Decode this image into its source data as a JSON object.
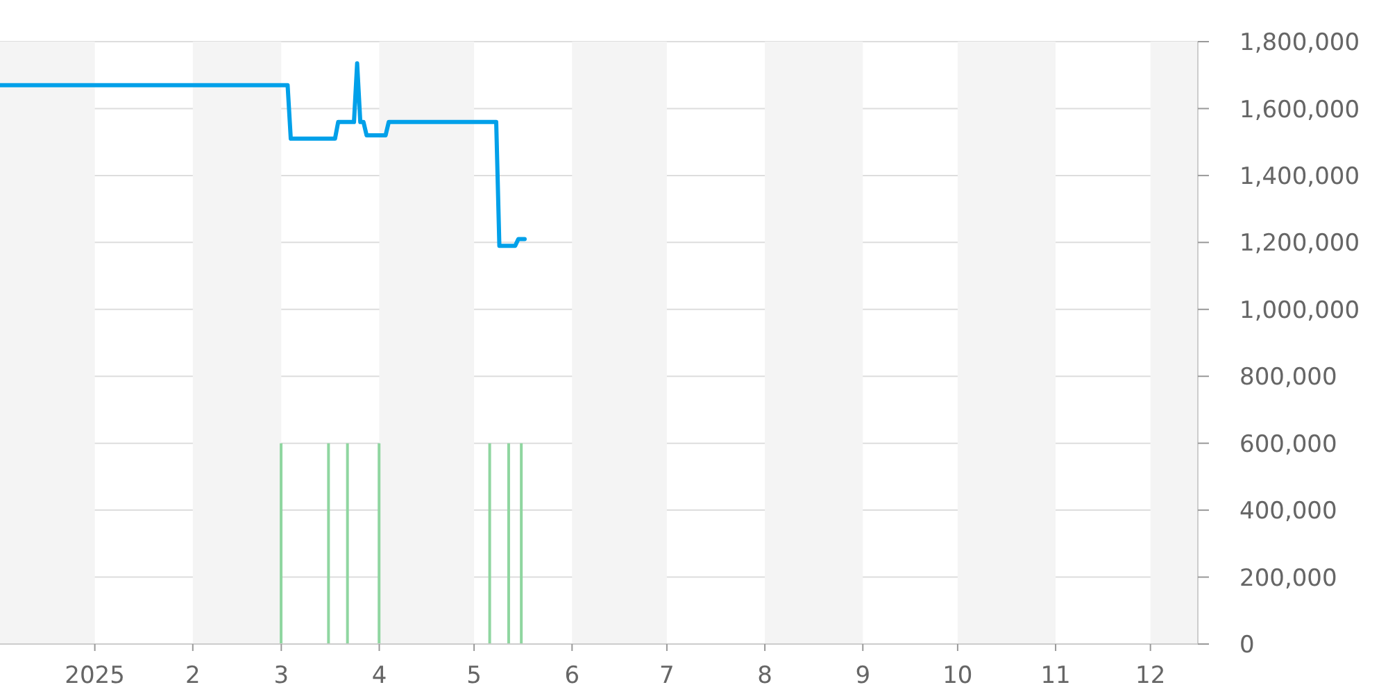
{
  "chart_data": {
    "type": "line",
    "series": [
      {
        "color": "#00a0e9",
        "x": [
          "2024-12-02",
          "2025-03-03",
          "2025-03-04",
          "2025-03-18",
          "2025-03-19",
          "2025-03-24",
          "2025-03-25",
          "2025-03-26",
          "2025-03-27",
          "2025-03-28",
          "2025-04-03",
          "2025-04-04",
          "2025-05-08",
          "2025-05-09",
          "2025-05-14",
          "2025-05-15",
          "2025-05-17"
        ],
        "values": [
          1670000,
          1670000,
          1510000,
          1510000,
          1560000,
          1560000,
          1735000,
          1560000,
          1560000,
          1520000,
          1520000,
          1560000,
          1560000,
          1190000,
          1190000,
          1210000,
          1210000
        ]
      },
      {
        "type": "bar",
        "color": "#8fd6a0",
        "x": [
          "2025-03-01",
          "2025-03-16",
          "2025-03-22",
          "2025-04-01",
          "2025-05-06",
          "2025-05-12",
          "2025-05-16"
        ],
        "values": [
          600000,
          600000,
          600000,
          600000,
          600000,
          600000,
          600000
        ]
      }
    ],
    "xlim": [
      "2024-12-02",
      "2025-12-16"
    ],
    "xticks": [
      {
        "value": "2025-01-01",
        "label": "2025"
      },
      {
        "value": "2025-02-01",
        "label": "2"
      },
      {
        "value": "2025-03-01",
        "label": "3"
      },
      {
        "value": "2025-04-01",
        "label": "4"
      },
      {
        "value": "2025-05-01",
        "label": "5"
      },
      {
        "value": "2025-06-01",
        "label": "6"
      },
      {
        "value": "2025-07-01",
        "label": "7"
      },
      {
        "value": "2025-08-01",
        "label": "8"
      },
      {
        "value": "2025-09-01",
        "label": "9"
      },
      {
        "value": "2025-10-01",
        "label": "10"
      },
      {
        "value": "2025-11-01",
        "label": "11"
      },
      {
        "value": "2025-12-01",
        "label": "12"
      }
    ],
    "ylim": [
      0,
      1800000
    ],
    "yticks": [
      0,
      {
        "value": 200000,
        "label": "200,000"
      },
      {
        "value": 400000,
        "label": "400,000"
      },
      {
        "value": 600000,
        "label": "600,000"
      },
      {
        "value": 800000,
        "label": "800,000"
      },
      {
        "value": 1000000,
        "label": "1,000,000"
      },
      {
        "value": 1200000,
        "label": "1,200,000"
      },
      {
        "value": 1400000,
        "label": "1,400,000"
      },
      {
        "value": 1600000,
        "label": "1,600,000"
      },
      {
        "value": 1800000,
        "label": "1,800,000"
      }
    ],
    "grid": "y",
    "bands": [
      {
        "axis": "x",
        "from": "2024-12-02",
        "to": "2025-01-01",
        "color": "#f4f4f4"
      },
      {
        "axis": "x",
        "from": "2025-02-01",
        "to": "2025-03-01",
        "color": "#f4f4f4"
      },
      {
        "axis": "x",
        "from": "2025-04-01",
        "to": "2025-05-01",
        "color": "#f4f4f4"
      },
      {
        "axis": "x",
        "from": "2025-06-01",
        "to": "2025-07-01",
        "color": "#f4f4f4"
      },
      {
        "axis": "x",
        "from": "2025-08-01",
        "to": "2025-09-01",
        "color": "#f4f4f4"
      },
      {
        "axis": "x",
        "from": "2025-10-01",
        "to": "2025-11-01",
        "color": "#f4f4f4"
      },
      {
        "axis": "x",
        "from": "2025-12-01",
        "to": "2025-12-16",
        "color": "#f4f4f4"
      }
    ]
  }
}
